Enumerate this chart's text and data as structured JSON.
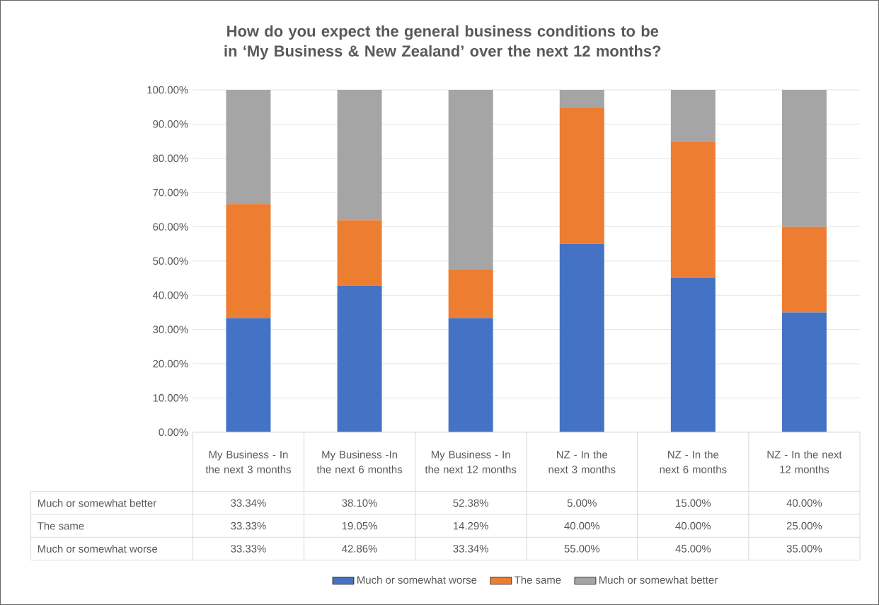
{
  "chart_data": {
    "type": "bar",
    "stacked": true,
    "title": "How do you expect the general business conditions to be in ‘My Business & New Zealand’ over the next 12 months?",
    "categories": [
      "My Business - In the next 3 months",
      "My Business -In the next 6 months",
      "My Business - In the next 12 months",
      "NZ - In the next 3 months",
      "NZ - In the next 6 months",
      "NZ - In the next 12 months"
    ],
    "series": [
      {
        "name": "Much or somewhat worse",
        "color": "#4472c4",
        "values": [
          33.33,
          42.86,
          33.34,
          55.0,
          45.0,
          35.0
        ],
        "value_labels": [
          "33.33%",
          "42.86%",
          "33.34%",
          "55.00%",
          "45.00%",
          "35.00%"
        ]
      },
      {
        "name": "The same",
        "color": "#ed7d31",
        "values": [
          33.33,
          19.05,
          14.29,
          40.0,
          40.0,
          25.0
        ],
        "value_labels": [
          "33.33%",
          "19.05%",
          "14.29%",
          "40.00%",
          "40.00%",
          "25.00%"
        ]
      },
      {
        "name": "Much or somewhat better",
        "color": "#a5a5a5",
        "values": [
          33.34,
          38.1,
          52.38,
          5.0,
          15.0,
          40.0
        ],
        "value_labels": [
          "33.34%",
          "38.10%",
          "52.38%",
          "5.00%",
          "15.00%",
          "40.00%"
        ]
      }
    ],
    "ylim": [
      0,
      100
    ],
    "yticks": [
      {
        "value": 0,
        "label": "0.00%"
      },
      {
        "value": 10,
        "label": "10.00%"
      },
      {
        "value": 20,
        "label": "20.00%"
      },
      {
        "value": 30,
        "label": "30.00%"
      },
      {
        "value": 40,
        "label": "40.00%"
      },
      {
        "value": 50,
        "label": "50.00%"
      },
      {
        "value": 60,
        "label": "60.00%"
      },
      {
        "value": 70,
        "label": "70.00%"
      },
      {
        "value": 80,
        "label": "80.00%"
      },
      {
        "value": 90,
        "label": "90.00%"
      },
      {
        "value": 100,
        "label": "100.00%"
      }
    ],
    "grid": "y",
    "legend": "bottom"
  }
}
